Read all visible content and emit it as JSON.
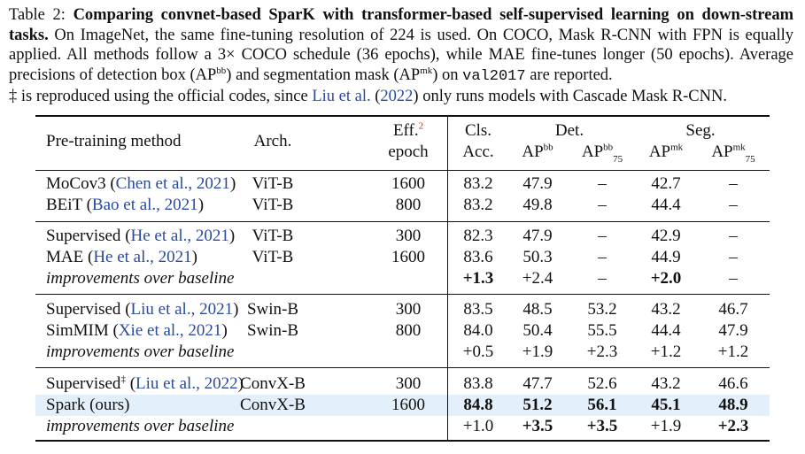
{
  "caption": {
    "label": "Table 2:",
    "title": "Comparing convnet-based SparK with transformer-based self-supervised learning on down-stream tasks.",
    "text1": "On ImageNet, the same fine-tuning resolution of 224 is used. On COCO, Mask R-CNN with FPN is equally applied. All methods follow a 3× COCO schedule (36 epochs), while MAE fine-tunes longer (50 epochs). Average precisions of detection box (AP",
    "sup_bb": "bb",
    "text2": ") and segmentation mask (AP",
    "sup_mk": "mk",
    "text3": ") on",
    "mono": "val2017",
    "text4": "are reported.",
    "text5": "‡ is reproduced using the official codes, since",
    "cite_author": "Liu et al.",
    "cite_year": "2022",
    "text6": "only runs models with Cascade Mask R-CNN."
  },
  "header": {
    "method": "Pre-training method",
    "arch": "Arch.",
    "eff": "Eff.",
    "eff_sup": "2",
    "epoch": "epoch",
    "cls_top": "Cls.",
    "cls_bottom": "Acc.",
    "det": "Det.",
    "seg": "Seg.",
    "ap": "AP",
    "bb": "bb",
    "mk": "mk",
    "sub75": "75"
  },
  "rows": [
    {
      "method": "MoCov3",
      "cite": "Chen et al., 2021",
      "arch": "ViT-B",
      "epoch": "1600",
      "cls": "83.2",
      "ap": "47.9",
      "ap75": "–",
      "apm": "42.7",
      "apm75": "–"
    },
    {
      "method": "BEiT",
      "cite": "Bao et al., 2021",
      "arch": "ViT-B",
      "epoch": "800",
      "cls": "83.2",
      "ap": "49.8",
      "ap75": "–",
      "apm": "44.4",
      "apm75": "–"
    },
    {
      "method": "Supervised",
      "cite": "He et al., 2021",
      "arch": "ViT-B",
      "epoch": "300",
      "cls": "82.3",
      "ap": "47.9",
      "ap75": "–",
      "apm": "42.9",
      "apm75": "–"
    },
    {
      "method": "MAE",
      "cite": "He et al., 2021",
      "arch": "ViT-B",
      "epoch": "1600",
      "cls": "83.6",
      "ap": "50.3",
      "ap75": "–",
      "apm": "44.9",
      "apm75": "–"
    },
    {
      "method": "improvements over baseline",
      "cite": "",
      "arch": "",
      "epoch": "",
      "cls": "+1.3",
      "ap": "+2.4",
      "ap75": "–",
      "apm": "+2.0",
      "apm75": "–"
    },
    {
      "method": "Supervised",
      "cite": "Liu et al., 2021",
      "arch": "Swin-B",
      "epoch": "300",
      "cls": "83.5",
      "ap": "48.5",
      "ap75": "53.2",
      "apm": "43.2",
      "apm75": "46.7"
    },
    {
      "method": "SimMIM",
      "cite": "Xie et al., 2021",
      "arch": "Swin-B",
      "epoch": "800",
      "cls": "84.0",
      "ap": "50.4",
      "ap75": "55.5",
      "apm": "44.4",
      "apm75": "47.9"
    },
    {
      "method": "improvements over baseline",
      "cite": "",
      "arch": "",
      "epoch": "",
      "cls": "+0.5",
      "ap": "+1.9",
      "ap75": "+2.3",
      "apm": "+1.2",
      "apm75": "+1.2"
    },
    {
      "method": "Supervised",
      "method_sup": "‡",
      "cite": "Liu et al., 2022",
      "arch": "ConvX-B",
      "epoch": "300",
      "cls": "83.8",
      "ap": "47.7",
      "ap75": "52.6",
      "apm": "43.2",
      "apm75": "46.6"
    },
    {
      "method": "Spark (ours)",
      "cite": "",
      "arch": "ConvX-B",
      "epoch": "1600",
      "cls": "84.8",
      "ap": "51.2",
      "ap75": "56.1",
      "apm": "45.1",
      "apm75": "48.9"
    },
    {
      "method": "improvements over baseline",
      "cite": "",
      "arch": "",
      "epoch": "",
      "cls": "+1.0",
      "ap": "+3.5",
      "ap75": "+3.5",
      "apm": "+1.9",
      "apm75": "+2.3"
    }
  ],
  "colors": {
    "citation": "#2a4aa0",
    "footnote_ref": "#d42020",
    "highlight_row": "#e3f0fb"
  }
}
